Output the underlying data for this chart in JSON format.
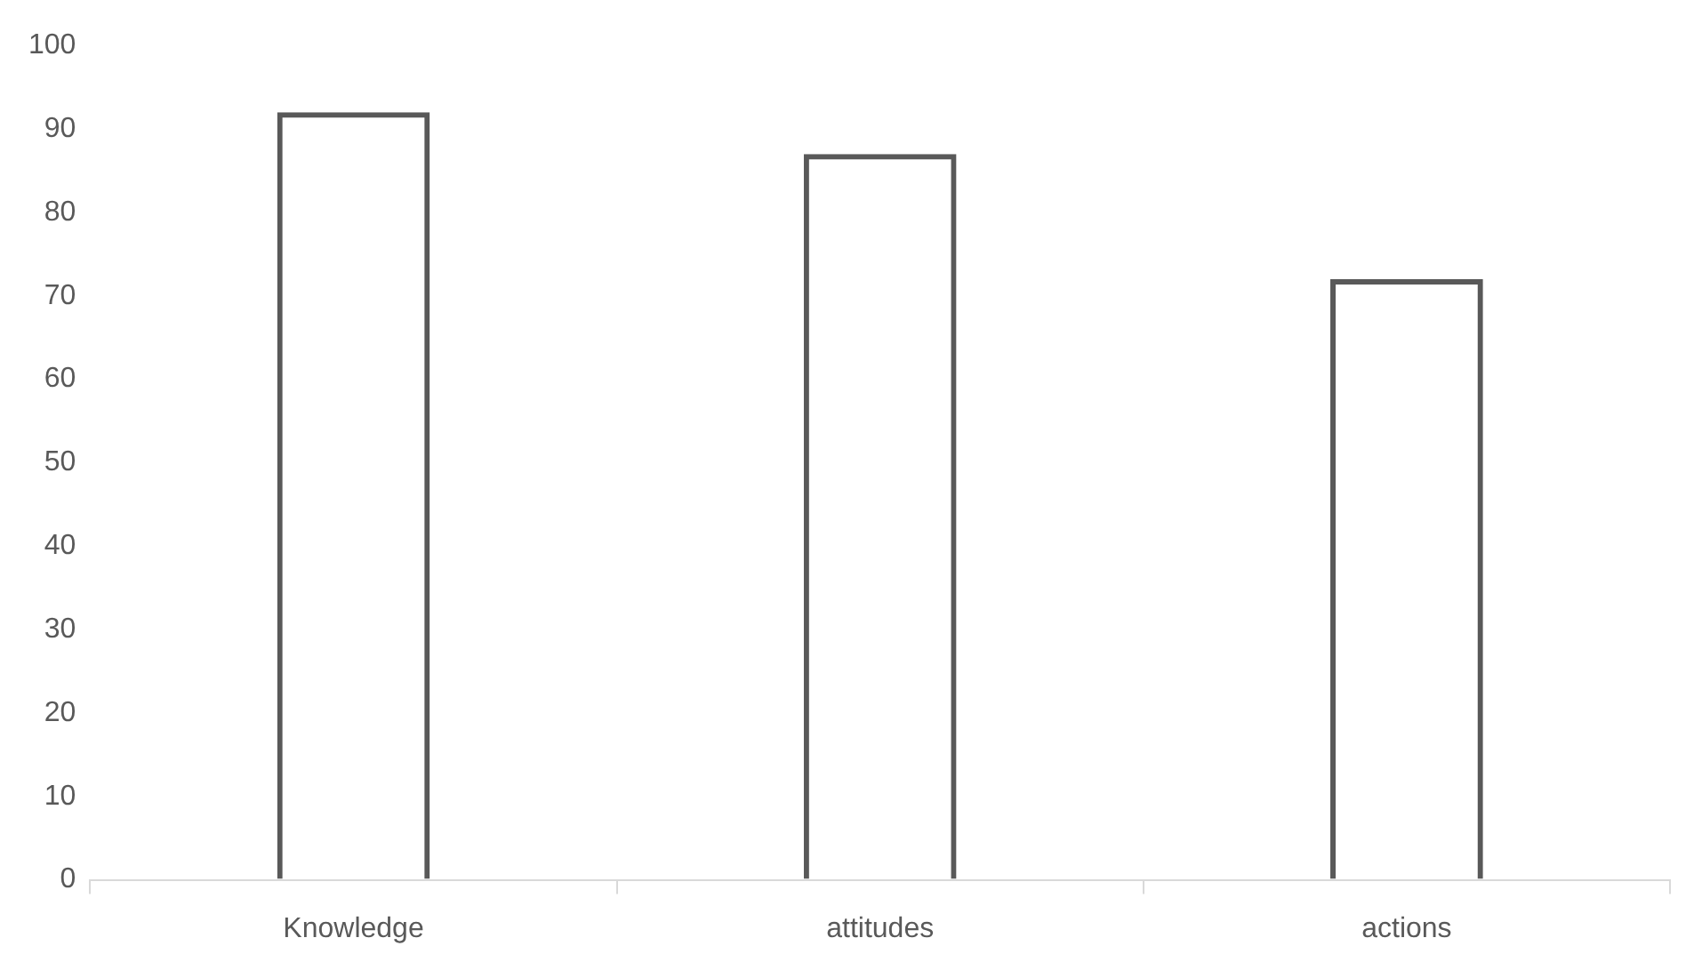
{
  "chart_data": {
    "type": "bar",
    "categories": [
      "Knowledge",
      "attitudes",
      "actions"
    ],
    "values": [
      92,
      87,
      72
    ],
    "color": "#595959",
    "ylim": [
      0,
      100
    ],
    "yticks": [
      0,
      10,
      20,
      30,
      40,
      50,
      60,
      70,
      80,
      90,
      100
    ],
    "grid": false
  }
}
